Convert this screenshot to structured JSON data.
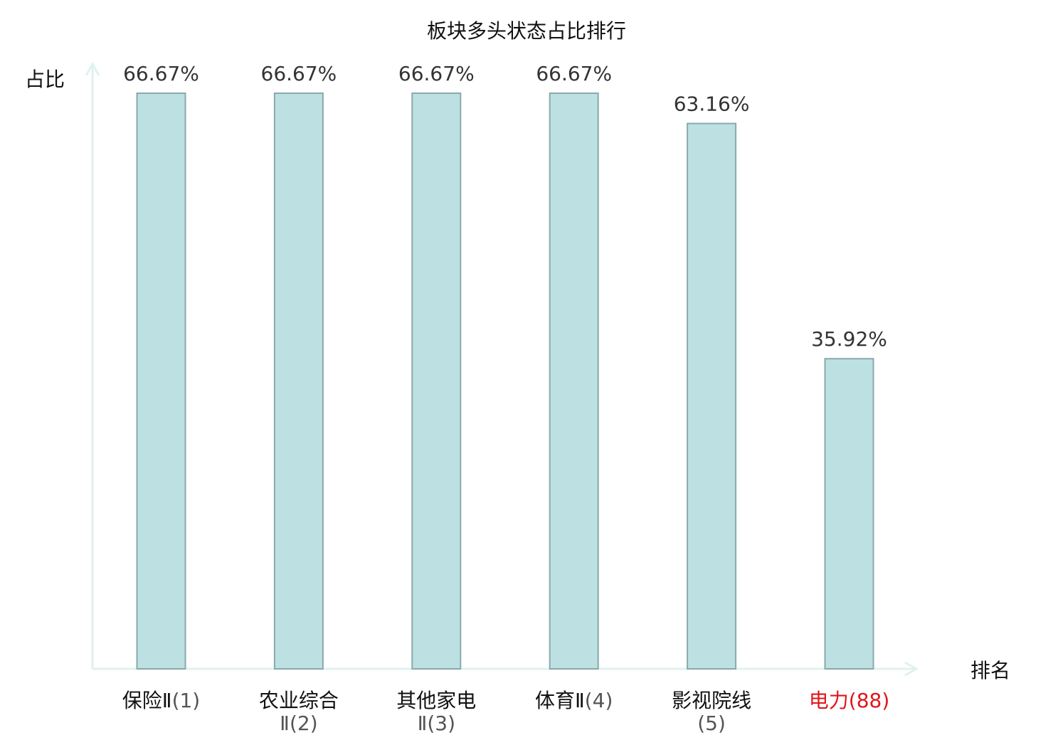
{
  "chart_data": {
    "type": "bar",
    "title": "板块多头状态占比排行",
    "ylabel": "占比",
    "xlabel": "排名",
    "ylim": [
      0,
      70
    ],
    "grid": false,
    "categories": [
      {
        "lines": [
          "保险Ⅱ",
          "(1)"
        ],
        "highlight": false
      },
      {
        "lines": [
          "农业综合",
          "Ⅱ(2)"
        ],
        "highlight": false
      },
      {
        "lines": [
          "其他家电",
          "Ⅱ(3)"
        ],
        "highlight": false
      },
      {
        "lines": [
          "体育Ⅱ",
          "(4)"
        ],
        "highlight": false
      },
      {
        "lines": [
          "影视院线",
          "(5)"
        ],
        "highlight": false
      },
      {
        "lines": [
          "电力",
          "(88)"
        ],
        "highlight": true
      }
    ],
    "values": [
      66.67,
      66.67,
      66.67,
      66.67,
      63.16,
      35.92
    ],
    "value_labels": [
      "66.67%",
      "66.67%",
      "66.67%",
      "66.67%",
      "63.16%",
      "35.92%"
    ],
    "colors": {
      "bar_fill": "#bde1e3",
      "bar_stroke": "#8aa9ab",
      "axis": "#e0f2ef",
      "text": "#333333",
      "highlight_text": "#e0161b"
    }
  }
}
